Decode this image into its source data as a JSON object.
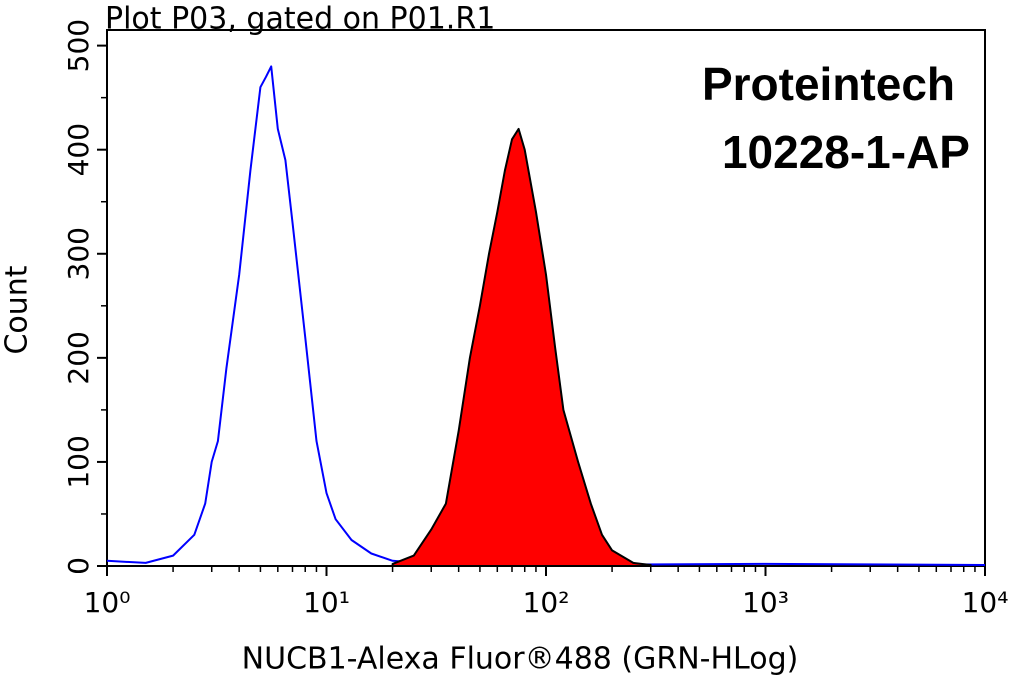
{
  "chart_data": {
    "type": "histogram-overlay",
    "title": "Plot P03, gated on P01.R1",
    "annotations": [
      "Proteintech",
      "10228-1-AP"
    ],
    "x_label": "NUCB1-Alexa Fluor®488 (GRN-HLog)",
    "y_label": "Count",
    "x_log": true,
    "xlim": [
      1,
      10000
    ],
    "ylim": [
      0,
      515
    ],
    "xticks": [
      {
        "value": 1,
        "label": "10⁰"
      },
      {
        "value": 10,
        "label": "10¹"
      },
      {
        "value": 100,
        "label": "10²"
      },
      {
        "value": 1000,
        "label": "10³"
      },
      {
        "value": 10000,
        "label": "10⁴"
      }
    ],
    "xminorticks": [
      2,
      3,
      4,
      5,
      6,
      7,
      8,
      9,
      20,
      30,
      40,
      50,
      60,
      70,
      80,
      90,
      200,
      300,
      400,
      500,
      600,
      700,
      800,
      900,
      2000,
      3000,
      4000,
      5000,
      6000,
      7000,
      8000,
      9000
    ],
    "yticks": [
      0,
      100,
      200,
      300,
      400,
      500
    ],
    "yminorticks": [
      50,
      150,
      250,
      350,
      450
    ],
    "series": [
      {
        "color": "#0000ff",
        "filled": false,
        "x": [
          1,
          1.5,
          2,
          2.5,
          2.8,
          3,
          3.2,
          3.5,
          4,
          4.5,
          5,
          5.3,
          5.6,
          6,
          6.5,
          7,
          8,
          9,
          10,
          11,
          13,
          16,
          20,
          30,
          100,
          1000,
          10000
        ],
        "values": [
          5,
          3,
          10,
          30,
          60,
          100,
          120,
          190,
          280,
          380,
          460,
          470,
          480,
          420,
          390,
          330,
          220,
          120,
          70,
          45,
          25,
          12,
          5,
          2,
          1,
          2,
          1
        ]
      },
      {
        "color": "#ff0000",
        "filled": true,
        "x": [
          20,
          25,
          30,
          35,
          40,
          45,
          50,
          55,
          60,
          65,
          70,
          75,
          80,
          90,
          100,
          110,
          120,
          140,
          160,
          180,
          200,
          250,
          300
        ],
        "values": [
          2,
          10,
          35,
          60,
          130,
          200,
          250,
          300,
          340,
          380,
          410,
          420,
          400,
          340,
          280,
          210,
          150,
          100,
          60,
          30,
          15,
          3,
          1
        ]
      }
    ]
  }
}
